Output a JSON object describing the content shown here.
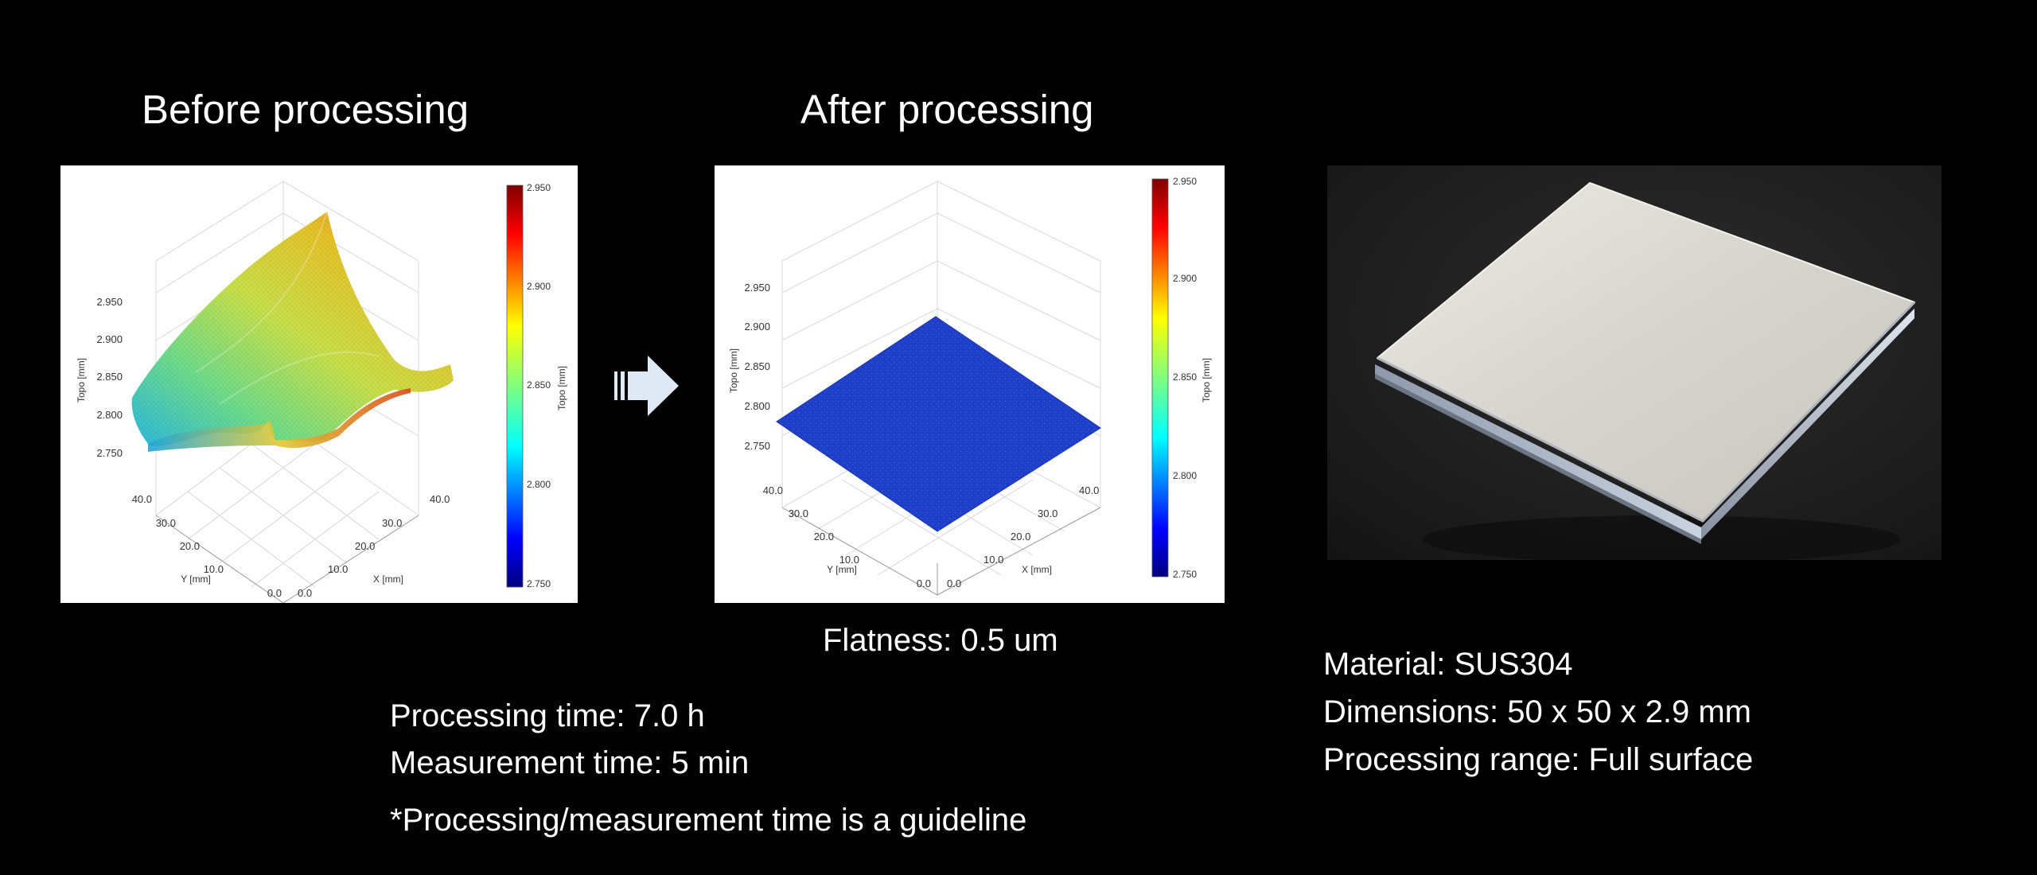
{
  "headings": {
    "before": "Before processing",
    "after": "After processing"
  },
  "plots": {
    "before": {
      "z_ticks": [
        "2.950",
        "2.900",
        "2.850",
        "2.800",
        "2.750"
      ],
      "z_label": "Topo [mm]",
      "y_ticks": [
        "40.0",
        "30.0",
        "20.0",
        "10.0",
        "0.0"
      ],
      "y_label": "Y [mm]",
      "x_ticks": [
        "0.0",
        "10.0",
        "20.0",
        "30.0",
        "40.0"
      ],
      "x_label": "X [mm]",
      "colorbar_ticks": [
        "2.950",
        "2.900",
        "2.850",
        "2.800",
        "2.750"
      ],
      "colorbar_label": "Topo [mm]"
    },
    "after": {
      "z_ticks": [
        "2.950",
        "2.900",
        "2.850",
        "2.800",
        "2.750"
      ],
      "z_label": "Topo [mm]",
      "y_ticks": [
        "40.0",
        "30.0",
        "20.0",
        "10.0",
        "0.0"
      ],
      "y_label": "Y [mm]",
      "x_ticks": [
        "0.0",
        "10.0",
        "20.0",
        "30.0",
        "40.0"
      ],
      "x_label": "X [mm]",
      "colorbar_ticks": [
        "2.950",
        "2.900",
        "2.850",
        "2.800",
        "2.750"
      ],
      "colorbar_label": "Topo [mm]"
    }
  },
  "flatness": "Flatness: 0.5 um",
  "timing": {
    "processing": "Processing time: 7.0 h",
    "measurement": "Measurement time: 5 min",
    "note": "*Processing/measurement time is a guideline"
  },
  "specs": {
    "material": "Material: SUS304",
    "dimensions": "Dimensions: 50 x 50 x 2.9 mm",
    "range": "Processing range: Full surface"
  },
  "colors": {
    "background": "#000000",
    "flat_surface": "#1f3fc9",
    "arrow": "#dfe9f6"
  },
  "icons": {
    "arrow": "right-arrow-icon"
  }
}
